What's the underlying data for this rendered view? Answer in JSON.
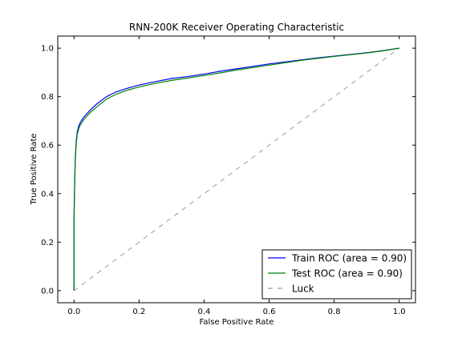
{
  "chart_data": {
    "type": "line",
    "title": "RNN-200K Receiver Operating Characteristic",
    "xlabel": "False Positive Rate",
    "ylabel": "True Positive Rate",
    "xlim": [
      -0.05,
      1.05
    ],
    "ylim": [
      -0.05,
      1.05
    ],
    "xticks": [
      "0.0",
      "0.2",
      "0.4",
      "0.6",
      "0.8",
      "1.0"
    ],
    "yticks": [
      "0.0",
      "0.2",
      "0.4",
      "0.6",
      "0.8",
      "1.0"
    ],
    "legend_position": "lower-right",
    "grid": false,
    "series": [
      {
        "name": "Train ROC (area = 0.90)",
        "color": "#0000ff",
        "style": "solid",
        "x": [
          0.0,
          0.0,
          0.002,
          0.004,
          0.007,
          0.01,
          0.015,
          0.02,
          0.03,
          0.05,
          0.07,
          0.1,
          0.13,
          0.16,
          0.2,
          0.25,
          0.3,
          0.35,
          0.4,
          0.45,
          0.5,
          0.55,
          0.6,
          0.65,
          0.7,
          0.75,
          0.8,
          0.85,
          0.9,
          0.95,
          1.0
        ],
        "y": [
          0.0,
          0.3,
          0.45,
          0.55,
          0.62,
          0.655,
          0.68,
          0.695,
          0.715,
          0.745,
          0.77,
          0.8,
          0.82,
          0.833,
          0.848,
          0.862,
          0.875,
          0.883,
          0.893,
          0.905,
          0.915,
          0.925,
          0.935,
          0.943,
          0.952,
          0.96,
          0.967,
          0.974,
          0.981,
          0.99,
          1.0
        ]
      },
      {
        "name": "Test ROC (area = 0.90)",
        "color": "#008000",
        "style": "solid",
        "x": [
          0.0,
          0.0,
          0.002,
          0.004,
          0.007,
          0.01,
          0.015,
          0.02,
          0.03,
          0.05,
          0.07,
          0.1,
          0.13,
          0.16,
          0.2,
          0.25,
          0.3,
          0.35,
          0.4,
          0.45,
          0.5,
          0.55,
          0.6,
          0.65,
          0.7,
          0.75,
          0.8,
          0.85,
          0.9,
          0.95,
          1.0
        ],
        "y": [
          0.0,
          0.28,
          0.43,
          0.54,
          0.61,
          0.645,
          0.67,
          0.685,
          0.705,
          0.735,
          0.758,
          0.79,
          0.81,
          0.825,
          0.84,
          0.855,
          0.867,
          0.877,
          0.887,
          0.898,
          0.91,
          0.92,
          0.93,
          0.94,
          0.95,
          0.958,
          0.966,
          0.973,
          0.98,
          0.989,
          1.0
        ]
      },
      {
        "name": "Luck",
        "color": "#999999",
        "style": "dashed",
        "x": [
          0.0,
          1.0
        ],
        "y": [
          0.0,
          1.0
        ]
      }
    ]
  }
}
